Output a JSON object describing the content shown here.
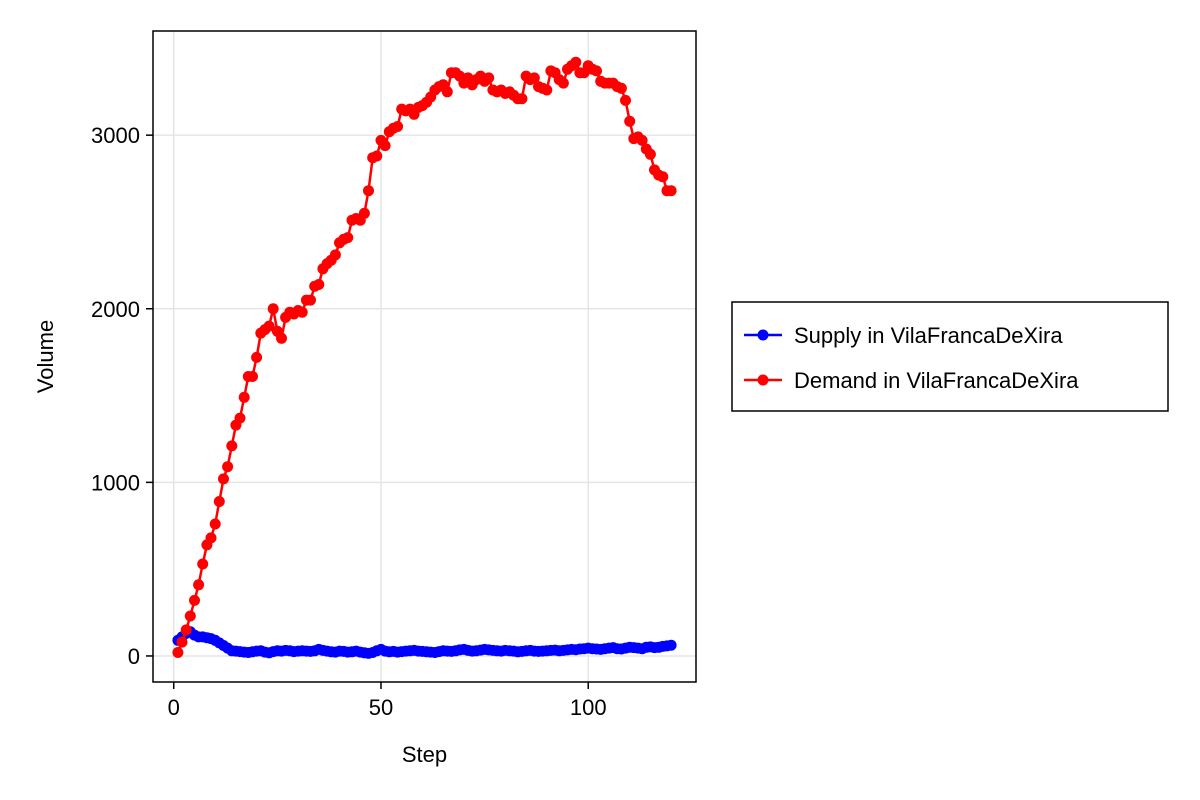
{
  "chart_data": {
    "type": "line",
    "xlabel": "Step",
    "ylabel": "Volume",
    "xlim": [
      -5,
      126
    ],
    "ylim": [
      -150,
      3600
    ],
    "xticks": [
      0,
      50,
      100
    ],
    "yticks": [
      0,
      1000,
      2000,
      3000
    ],
    "grid": true,
    "legend_placement": "right",
    "series": [
      {
        "name": "Supply in VilaFrancaDeXira",
        "color": "#0000ff",
        "x": [
          1,
          2,
          3,
          4,
          5,
          6,
          7,
          8,
          9,
          10,
          11,
          12,
          13,
          14,
          15,
          16,
          17,
          18,
          19,
          20,
          21,
          22,
          23,
          24,
          25,
          26,
          27,
          28,
          29,
          30,
          31,
          32,
          33,
          34,
          35,
          36,
          37,
          38,
          39,
          40,
          41,
          42,
          43,
          44,
          45,
          46,
          47,
          48,
          49,
          50,
          51,
          52,
          53,
          54,
          55,
          56,
          57,
          58,
          59,
          60,
          61,
          62,
          63,
          64,
          65,
          66,
          67,
          68,
          69,
          70,
          71,
          72,
          73,
          74,
          75,
          76,
          77,
          78,
          79,
          80,
          81,
          82,
          83,
          84,
          85,
          86,
          87,
          88,
          89,
          90,
          91,
          92,
          93,
          94,
          95,
          96,
          97,
          98,
          99,
          100,
          101,
          102,
          103,
          104,
          105,
          106,
          107,
          108,
          109,
          110,
          111,
          112,
          113,
          114,
          115,
          116,
          117,
          118,
          119,
          120
        ],
        "y": [
          90,
          110,
          130,
          140,
          120,
          110,
          110,
          105,
          100,
          90,
          75,
          60,
          45,
          30,
          28,
          25,
          22,
          20,
          24,
          28,
          30,
          22,
          18,
          25,
          30,
          28,
          32,
          30,
          25,
          28,
          30,
          28,
          26,
          30,
          38,
          32,
          28,
          24,
          22,
          28,
          26,
          22,
          24,
          28,
          22,
          18,
          15,
          20,
          30,
          38,
          28,
          24,
          26,
          22,
          25,
          28,
          30,
          32,
          28,
          26,
          24,
          22,
          20,
          25,
          30,
          28,
          26,
          30,
          35,
          38,
          32,
          28,
          30,
          34,
          38,
          35,
          32,
          30,
          28,
          32,
          30,
          28,
          24,
          26,
          30,
          32,
          28,
          26,
          28,
          30,
          32,
          34,
          30,
          32,
          35,
          38,
          36,
          40,
          42,
          45,
          42,
          40,
          38,
          42,
          45,
          48,
          42,
          40,
          45,
          50,
          48,
          45,
          42,
          50,
          52,
          48,
          50,
          55,
          58,
          62
        ]
      },
      {
        "name": "Demand in VilaFrancaDeXira",
        "color": "#ff0000",
        "x": [
          1,
          2,
          3,
          4,
          5,
          6,
          7,
          8,
          9,
          10,
          11,
          12,
          13,
          14,
          15,
          16,
          17,
          18,
          19,
          20,
          21,
          22,
          23,
          24,
          25,
          26,
          27,
          28,
          29,
          30,
          31,
          32,
          33,
          34,
          35,
          36,
          37,
          38,
          39,
          40,
          41,
          42,
          43,
          44,
          45,
          46,
          47,
          48,
          49,
          50,
          51,
          52,
          53,
          54,
          55,
          56,
          57,
          58,
          59,
          60,
          61,
          62,
          63,
          64,
          65,
          66,
          67,
          68,
          69,
          70,
          71,
          72,
          73,
          74,
          75,
          76,
          77,
          78,
          79,
          80,
          81,
          82,
          83,
          84,
          85,
          86,
          87,
          88,
          89,
          90,
          91,
          92,
          93,
          94,
          95,
          96,
          97,
          98,
          99,
          100,
          101,
          102,
          103,
          104,
          105,
          106,
          107,
          108,
          109,
          110,
          111,
          112,
          113,
          114,
          115,
          116,
          117,
          118,
          119,
          120
        ],
        "y": [
          20,
          80,
          150,
          230,
          320,
          410,
          530,
          640,
          680,
          760,
          890,
          1020,
          1090,
          1210,
          1330,
          1370,
          1490,
          1610,
          1610,
          1720,
          1860,
          1880,
          1900,
          2000,
          1870,
          1830,
          1950,
          1980,
          1970,
          1990,
          1980,
          2050,
          2050,
          2130,
          2140,
          2230,
          2260,
          2280,
          2310,
          2380,
          2400,
          2410,
          2510,
          2520,
          2510,
          2550,
          2680,
          2870,
          2880,
          2970,
          2940,
          3020,
          3040,
          3050,
          3150,
          3140,
          3150,
          3120,
          3160,
          3170,
          3190,
          3220,
          3260,
          3280,
          3290,
          3250,
          3360,
          3360,
          3340,
          3300,
          3330,
          3290,
          3320,
          3340,
          3310,
          3330,
          3260,
          3250,
          3260,
          3240,
          3250,
          3230,
          3210,
          3210,
          3340,
          3320,
          3330,
          3280,
          3270,
          3260,
          3370,
          3360,
          3320,
          3300,
          3380,
          3400,
          3420,
          3360,
          3360,
          3400,
          3380,
          3370,
          3310,
          3300,
          3300,
          3300,
          3280,
          3270,
          3200,
          3080,
          2980,
          2990,
          2970,
          2920,
          2890,
          2800,
          2770,
          2760,
          2680,
          2680
        ]
      }
    ]
  }
}
